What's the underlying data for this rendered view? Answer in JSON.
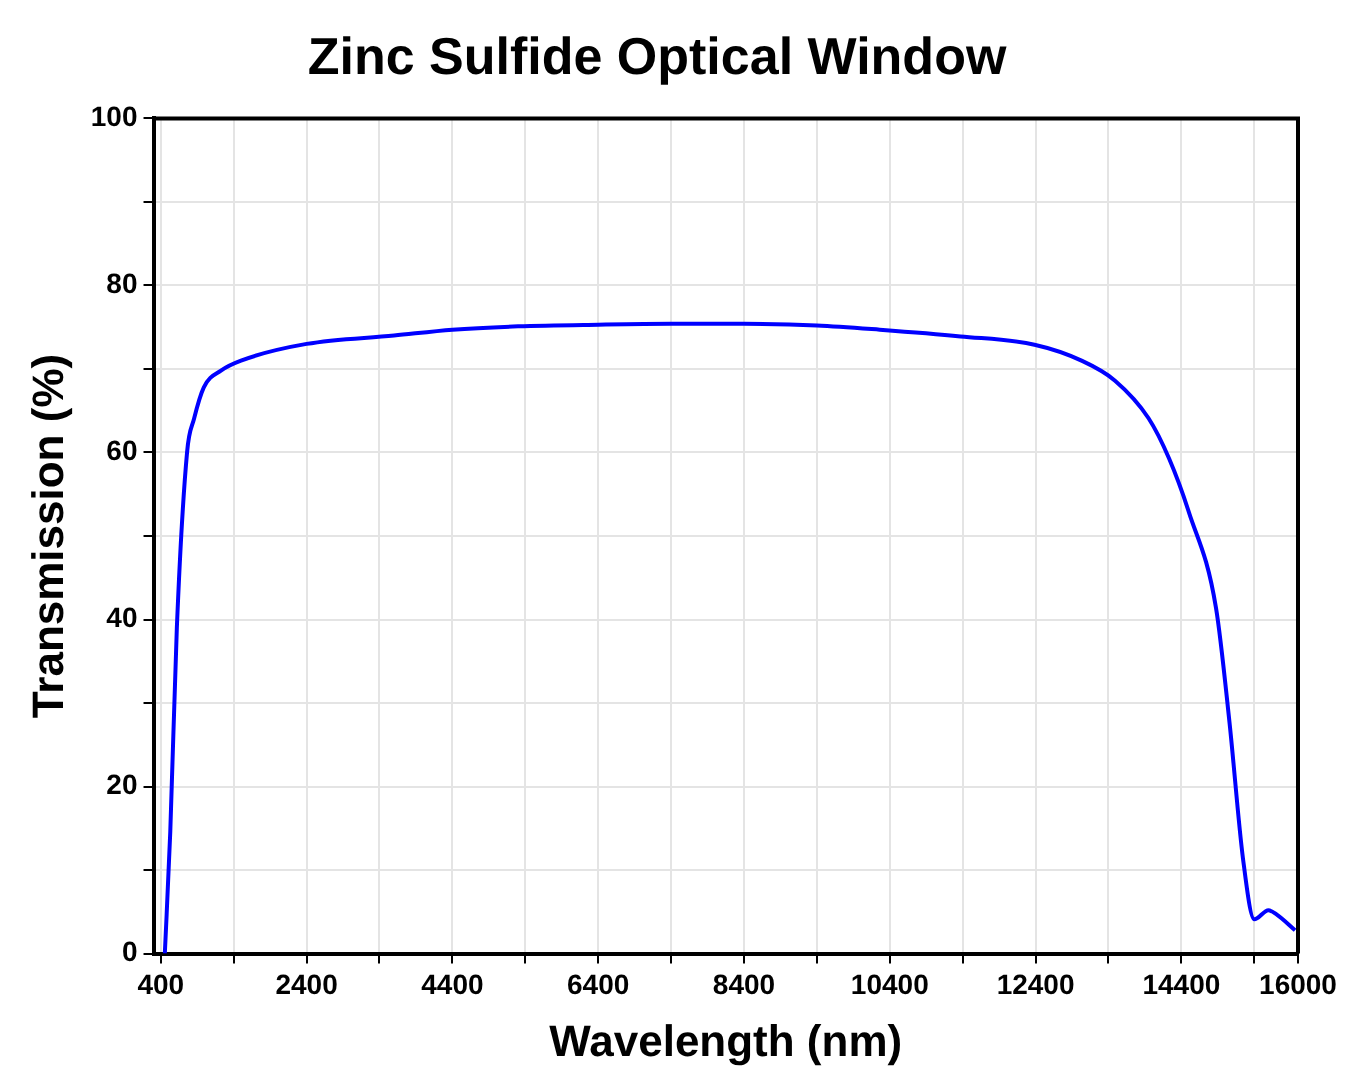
{
  "chart_data": {
    "type": "line",
    "title": "Zinc Sulfide Optical Window",
    "xlabel": "Wavelength (nm)",
    "ylabel": "Transmission (%)",
    "x": [
      455,
      530,
      620,
      760,
      855,
      990,
      1225,
      1500,
      2400,
      3600,
      4400,
      5300,
      6400,
      7400,
      8400,
      9400,
      10263,
      11370,
      12385,
      13030,
      13490,
      13950,
      14230,
      14505,
      14875,
      15060,
      15245,
      15400,
      15595,
      15705,
      15960
    ],
    "series": [
      {
        "color": "#0000ff",
        "values": [
          0,
          14.6,
          39,
          60,
          64,
          67.8,
          69.8,
          71,
          73,
          74,
          74.7,
          75.1,
          75.3,
          75.4,
          75.4,
          75.2,
          74.7,
          73.9,
          72.9,
          71,
          68.6,
          64.1,
          59.3,
          52.8,
          41.4,
          27.7,
          11.4,
          4.1,
          5.2,
          4.7,
          2.8
        ]
      }
    ],
    "xlim": [
      300,
      16000
    ],
    "xticks": [
      400,
      {
        "value": 1400,
        "label": null
      },
      2400,
      {
        "value": 3400,
        "label": null
      },
      4400,
      {
        "value": 5400,
        "label": null
      },
      6400,
      {
        "value": 7400,
        "label": null
      },
      8400,
      {
        "value": 9400,
        "label": null
      },
      10400,
      {
        "value": 11400,
        "label": null
      },
      12400,
      {
        "value": 13400,
        "label": null
      },
      14400,
      {
        "value": 15400,
        "label": null
      },
      16000
    ],
    "ylim": [
      0,
      100
    ],
    "yticks": [
      0,
      {
        "value": 10,
        "label": null
      },
      20,
      {
        "value": 30,
        "label": null
      },
      40,
      {
        "value": 50,
        "label": null
      },
      60,
      {
        "value": 70,
        "label": null
      },
      80,
      {
        "value": 90,
        "label": null
      },
      100
    ],
    "grid": true,
    "marker": "none",
    "line_style": "solid"
  }
}
